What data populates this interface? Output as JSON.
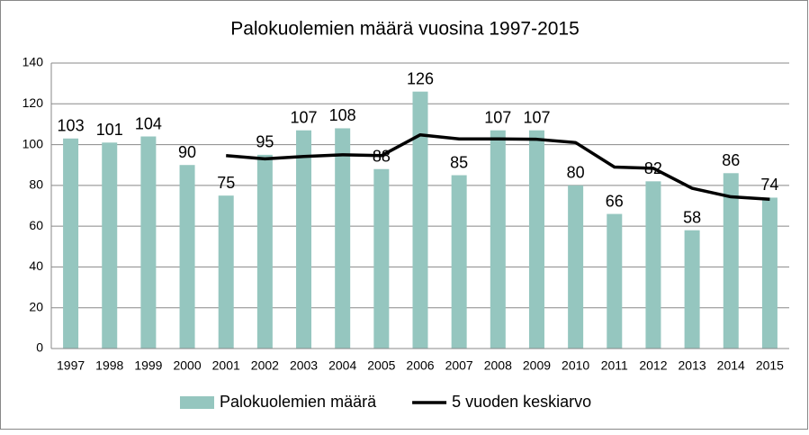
{
  "chart_data": {
    "type": "bar",
    "title": "Palokuolemien  määrä vuosina 1997-2015",
    "categories": [
      "1997",
      "1998",
      "1999",
      "2000",
      "2001",
      "2002",
      "2003",
      "2004",
      "2005",
      "2006",
      "2007",
      "2008",
      "2009",
      "2010",
      "2011",
      "2012",
      "2013",
      "2014",
      "2015"
    ],
    "series": [
      {
        "name": "Palokuolemien määrä",
        "type": "bar",
        "color": "#95c6bf",
        "values": [
          103,
          101,
          104,
          90,
          75,
          95,
          107,
          108,
          88,
          126,
          85,
          107,
          107,
          80,
          66,
          82,
          58,
          86,
          74
        ]
      },
      {
        "name": "5 vuoden keskiarvo",
        "type": "line",
        "color": "#000000",
        "values": [
          null,
          null,
          null,
          null,
          94.6,
          93,
          94.2,
          95,
          94.6,
          104.8,
          102.8,
          102.8,
          102.6,
          101,
          89,
          88.4,
          78.6,
          74.4,
          73.2
        ]
      }
    ],
    "ylim": [
      0,
      140
    ],
    "yticks": [
      0,
      20,
      40,
      60,
      80,
      100,
      120,
      140
    ],
    "grid": true,
    "legend": "bottom"
  }
}
